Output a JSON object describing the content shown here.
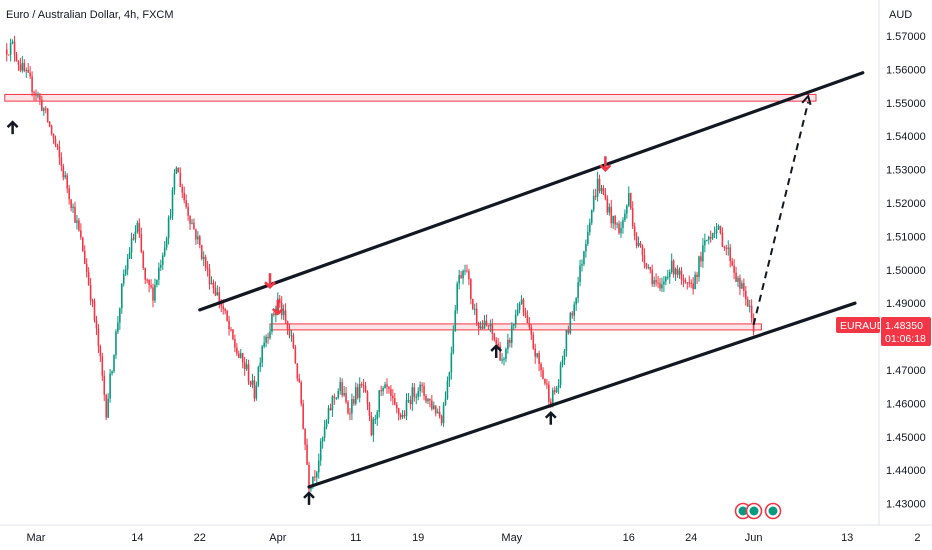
{
  "header": {
    "title": "Euro / Australian Dollar, 4h, FXCM",
    "currency": "AUD"
  },
  "price_tag": {
    "symbol": "EURAUD",
    "price": "1.48350",
    "countdown": "01:06:18",
    "color": "#f23645"
  },
  "colors": {
    "up": "#089981",
    "down": "#f23645",
    "line": "#131722",
    "zone_fill": "#fde4e6",
    "zone_border": "#f23645"
  },
  "chart_data": {
    "type": "candlestick",
    "title": "Euro / Australian Dollar, 4h, FXCM",
    "ylabel": "AUD",
    "ylim": [
      1.425,
      1.575
    ],
    "grid": false,
    "y_ticks": [
      "1.57000",
      "1.56000",
      "1.55000",
      "1.54000",
      "1.53000",
      "1.52000",
      "1.51000",
      "1.50000",
      "1.49000",
      "1.48000",
      "1.47000",
      "1.46000",
      "1.45000",
      "1.44000",
      "1.43000"
    ],
    "y_tick_values": [
      1.57,
      1.56,
      1.55,
      1.54,
      1.53,
      1.52,
      1.51,
      1.5,
      1.49,
      1.48,
      1.47,
      1.46,
      1.45,
      1.44,
      1.43
    ],
    "x_ticks": [
      "Mar",
      "14",
      "22",
      "Apr",
      "11",
      "19",
      "May",
      "16",
      "24",
      "Jun",
      "13",
      "2"
    ],
    "x_tick_dates": [
      "2024-03-01",
      "2024-03-14",
      "2024-03-22",
      "2024-04-01",
      "2024-04-11",
      "2024-04-19",
      "2024-05-01",
      "2024-05-16",
      "2024-05-24",
      "2024-06-01",
      "2024-06-13",
      "2024-06-22"
    ],
    "price_path": [
      [
        "2024-02-26",
        1.566
      ],
      [
        "2024-02-27",
        1.567
      ],
      [
        "2024-02-28",
        1.561
      ],
      [
        "2024-02-29",
        1.557
      ],
      [
        "2024-03-01",
        1.553
      ],
      [
        "2024-03-02",
        1.548
      ],
      [
        "2024-03-03",
        1.541
      ],
      [
        "2024-03-04",
        1.533
      ],
      [
        "2024-03-05",
        1.525
      ],
      [
        "2024-03-06",
        1.516
      ],
      [
        "2024-03-07",
        1.506
      ],
      [
        "2024-03-08",
        1.493
      ],
      [
        "2024-03-09",
        1.477
      ],
      [
        "2024-03-10",
        1.458
      ],
      [
        "2024-03-11",
        1.476
      ],
      [
        "2024-03-12",
        1.494
      ],
      [
        "2024-03-13",
        1.506
      ],
      [
        "2024-03-14",
        1.513
      ],
      [
        "2024-03-15",
        1.496
      ],
      [
        "2024-03-16",
        1.493
      ],
      [
        "2024-03-17",
        1.503
      ],
      [
        "2024-03-18",
        1.514
      ],
      [
        "2024-03-19",
        1.531
      ],
      [
        "2024-03-20",
        1.521
      ],
      [
        "2024-03-21",
        1.514
      ],
      [
        "2024-03-22",
        1.507
      ],
      [
        "2024-03-23",
        1.499
      ],
      [
        "2024-03-24",
        1.494
      ],
      [
        "2024-03-25",
        1.488
      ],
      [
        "2024-03-26",
        1.48
      ],
      [
        "2024-03-27",
        1.474
      ],
      [
        "2024-03-28",
        1.47
      ],
      [
        "2024-03-29",
        1.463
      ],
      [
        "2024-03-30",
        1.478
      ],
      [
        "2024-03-31",
        1.483
      ],
      [
        "2024-04-01",
        1.491
      ],
      [
        "2024-04-02",
        1.484
      ],
      [
        "2024-04-03",
        1.477
      ],
      [
        "2024-04-04",
        1.46
      ],
      [
        "2024-04-05",
        1.436
      ],
      [
        "2024-04-06",
        1.441
      ],
      [
        "2024-04-07",
        1.452
      ],
      [
        "2024-04-08",
        1.461
      ],
      [
        "2024-04-09",
        1.465
      ],
      [
        "2024-04-10",
        1.458
      ],
      [
        "2024-04-11",
        1.463
      ],
      [
        "2024-04-12",
        1.465
      ],
      [
        "2024-04-13",
        1.451
      ],
      [
        "2024-04-14",
        1.462
      ],
      [
        "2024-04-15",
        1.464
      ],
      [
        "2024-04-16",
        1.458
      ],
      [
        "2024-04-17",
        1.456
      ],
      [
        "2024-04-18",
        1.462
      ],
      [
        "2024-04-19",
        1.465
      ],
      [
        "2024-04-20",
        1.462
      ],
      [
        "2024-04-21",
        1.459
      ],
      [
        "2024-04-22",
        1.456
      ],
      [
        "2024-04-23",
        1.47
      ],
      [
        "2024-04-24",
        1.496
      ],
      [
        "2024-04-25",
        1.502
      ],
      [
        "2024-04-26",
        1.489
      ],
      [
        "2024-04-27",
        1.483
      ],
      [
        "2024-04-28",
        1.483
      ],
      [
        "2024-04-29",
        1.478
      ],
      [
        "2024-04-30",
        1.472
      ],
      [
        "2024-05-01",
        1.482
      ],
      [
        "2024-05-02",
        1.491
      ],
      [
        "2024-05-03",
        1.483
      ],
      [
        "2024-05-04",
        1.475
      ],
      [
        "2024-05-05",
        1.468
      ],
      [
        "2024-05-06",
        1.461
      ],
      [
        "2024-05-07",
        1.466
      ],
      [
        "2024-05-08",
        1.48
      ],
      [
        "2024-05-09",
        1.49
      ],
      [
        "2024-05-10",
        1.503
      ],
      [
        "2024-05-11",
        1.516
      ],
      [
        "2024-05-12",
        1.526
      ],
      [
        "2024-05-13",
        1.521
      ],
      [
        "2024-05-14",
        1.514
      ],
      [
        "2024-05-15",
        1.512
      ],
      [
        "2024-05-16",
        1.522
      ],
      [
        "2024-05-17",
        1.508
      ],
      [
        "2024-05-18",
        1.504
      ],
      [
        "2024-05-19",
        1.498
      ],
      [
        "2024-05-20",
        1.493
      ],
      [
        "2024-05-21",
        1.5
      ],
      [
        "2024-05-22",
        1.501
      ],
      [
        "2024-05-23",
        1.495
      ],
      [
        "2024-05-24",
        1.494
      ],
      [
        "2024-05-25",
        1.502
      ],
      [
        "2024-05-26",
        1.509
      ],
      [
        "2024-05-27",
        1.513
      ],
      [
        "2024-05-28",
        1.509
      ],
      [
        "2024-05-29",
        1.504
      ],
      [
        "2024-05-30",
        1.496
      ],
      [
        "2024-05-31",
        1.492
      ],
      [
        "2024-06-01",
        1.483
      ]
    ],
    "annotations": {
      "upper_channel": [
        [
          "2024-03-22",
          1.488
        ],
        [
          "2024-06-15",
          1.559
        ]
      ],
      "lower_channel": [
        [
          "2024-04-05",
          1.435
        ],
        [
          "2024-06-14",
          1.49
        ]
      ],
      "resistance_zone": {
        "from": "2024-02-26",
        "to": "2024-06-09",
        "low": 1.5505,
        "high": 1.5525
      },
      "support_zone": {
        "from": "2024-03-31",
        "to": "2024-06-02",
        "low": 1.4822,
        "high": 1.4838
      },
      "projection": [
        [
          "2024-06-01",
          1.4835
        ],
        [
          "2024-06-08",
          1.552
        ]
      ],
      "down_markers": [
        [
          "2024-03-31",
          1.493
        ],
        [
          "2024-04-01",
          1.485
        ],
        [
          "2024-05-13",
          1.528
        ]
      ],
      "up_markers": [
        [
          "2024-02-27",
          1.546
        ],
        [
          "2024-04-05",
          1.435
        ],
        [
          "2024-04-29",
          1.479
        ],
        [
          "2024-05-06",
          1.459
        ]
      ]
    }
  }
}
